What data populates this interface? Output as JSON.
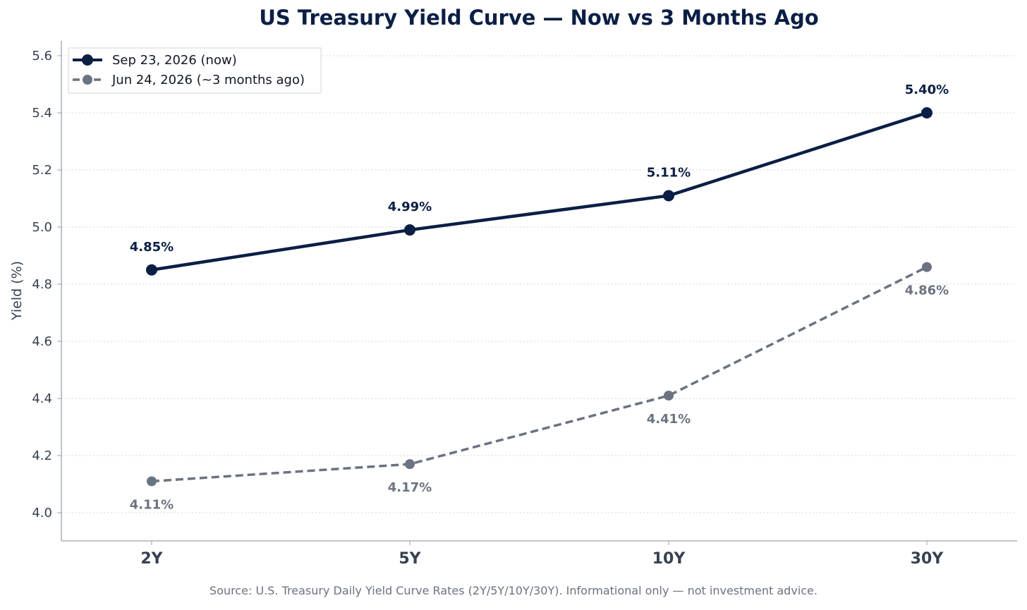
{
  "chart_data": {
    "type": "line",
    "title": "US Treasury Yield Curve — Now vs 3 Months Ago",
    "xlabel": "",
    "ylabel": "Yield (%)",
    "categories": [
      "2Y",
      "5Y",
      "10Y",
      "30Y"
    ],
    "ylim": [
      3.9,
      5.65
    ],
    "yticks": [
      4.0,
      4.2,
      4.4,
      4.6,
      4.8,
      5.0,
      5.2,
      5.4,
      5.6
    ],
    "ytick_labels": [
      "4.0",
      "4.2",
      "4.4",
      "4.6",
      "4.8",
      "5.0",
      "5.2",
      "5.4",
      "5.6"
    ],
    "grid": "horizontal-dotted",
    "legend_position": "top-left",
    "series": [
      {
        "name": "Sep 23, 2026 (now)",
        "values": [
          4.85,
          4.99,
          5.11,
          5.4
        ],
        "labels": [
          "4.85%",
          "4.99%",
          "5.11%",
          "5.40%"
        ],
        "color": "#0b1f45",
        "style": "solid"
      },
      {
        "name": "Jun 24, 2026 (~3 months ago)",
        "values": [
          4.11,
          4.17,
          4.41,
          4.86
        ],
        "labels": [
          "4.11%",
          "4.17%",
          "4.41%",
          "4.86%"
        ],
        "color": "#6b7280",
        "style": "dashed"
      }
    ],
    "source_note": "Source: U.S. Treasury Daily Yield Curve Rates (2Y/5Y/10Y/30Y). Informational only — not investment advice."
  },
  "colors": {
    "title": "#0b1f45",
    "axis": "#9ca3af",
    "tick_text": "#374151",
    "grid": "#d1d5db",
    "source_text": "#6b7280"
  }
}
